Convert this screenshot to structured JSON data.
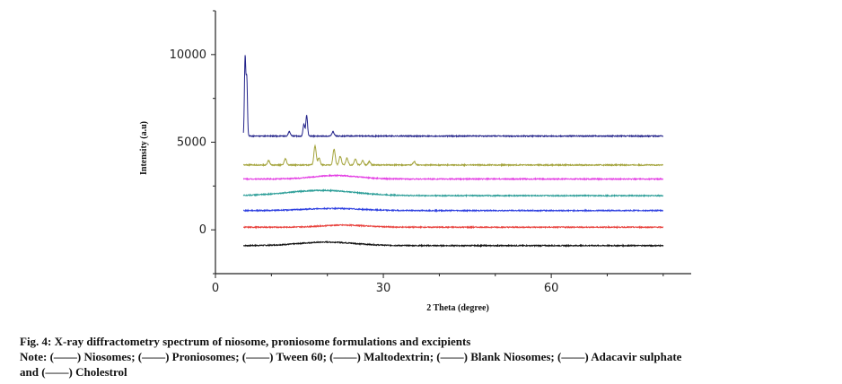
{
  "chart_data": {
    "type": "line",
    "xlabel": "2 Theta (degree)",
    "ylabel": "Intensity (a.u)",
    "xlim": [
      0,
      85
    ],
    "ylim": [
      -2500,
      12500
    ],
    "x_ticks": [
      0,
      30,
      60
    ],
    "y_ticks": [
      0,
      5000,
      10000
    ],
    "x_tick_labels": [
      "0",
      "30",
      "60"
    ],
    "y_tick_labels": [
      "0",
      "5000",
      "10000"
    ],
    "grid": false,
    "x_range_of_data": [
      5,
      80
    ],
    "series": [
      {
        "name": "Niosomes",
        "color": "#111111",
        "baseline": -900,
        "peaks": [
          [
            20,
            200,
            5
          ]
        ]
      },
      {
        "name": "Proniosomes",
        "color": "#e8413c",
        "baseline": 150,
        "peaks": [
          [
            23,
            120,
            4
          ]
        ]
      },
      {
        "name": "Tween 60",
        "color": "#2d3fe0",
        "baseline": 1100,
        "peaks": [
          [
            21,
            120,
            5
          ]
        ]
      },
      {
        "name": "Maltodextrin",
        "color": "#2a9d97",
        "baseline": 1950,
        "peaks": [
          [
            19,
            300,
            6
          ]
        ]
      },
      {
        "name": "Blank Niosomes",
        "color": "#e33be3",
        "baseline": 2900,
        "peaks": [
          [
            21.5,
            200,
            4
          ]
        ]
      },
      {
        "name": "Adacavir sulphate",
        "color": "#a3a33a",
        "baseline": 3700,
        "peaks": [
          [
            9.5,
            250,
            0.2
          ],
          [
            12.5,
            350,
            0.2
          ],
          [
            17.8,
            1100,
            0.2
          ],
          [
            18.5,
            400,
            0.2
          ],
          [
            21.2,
            900,
            0.2
          ],
          [
            22.3,
            500,
            0.2
          ],
          [
            23.5,
            400,
            0.2
          ],
          [
            25,
            350,
            0.2
          ],
          [
            26.3,
            250,
            0.2
          ],
          [
            27.5,
            200,
            0.2
          ],
          [
            35.5,
            200,
            0.2
          ]
        ]
      },
      {
        "name": "Cholestrol",
        "color": "#23238a",
        "baseline": 5350,
        "peaks": [
          [
            5.3,
            4500,
            0.12
          ],
          [
            5.6,
            3300,
            0.12
          ],
          [
            13.2,
            250,
            0.2
          ],
          [
            15.8,
            700,
            0.15
          ],
          [
            16.3,
            1200,
            0.15
          ],
          [
            21,
            250,
            0.2
          ]
        ]
      }
    ]
  },
  "caption": {
    "line1": "Fig. 4: X-ray diffractometry spectrum of niosome, proniosome formulations and excipients",
    "line2": "Note: (——) Niosomes; (——) Proniosomes; (——) Tween 60; (——) Maltodextrin; (——) Blank Niosomes; (——) Adacavir sulphate",
    "line3": "and (——) Cholestrol"
  }
}
